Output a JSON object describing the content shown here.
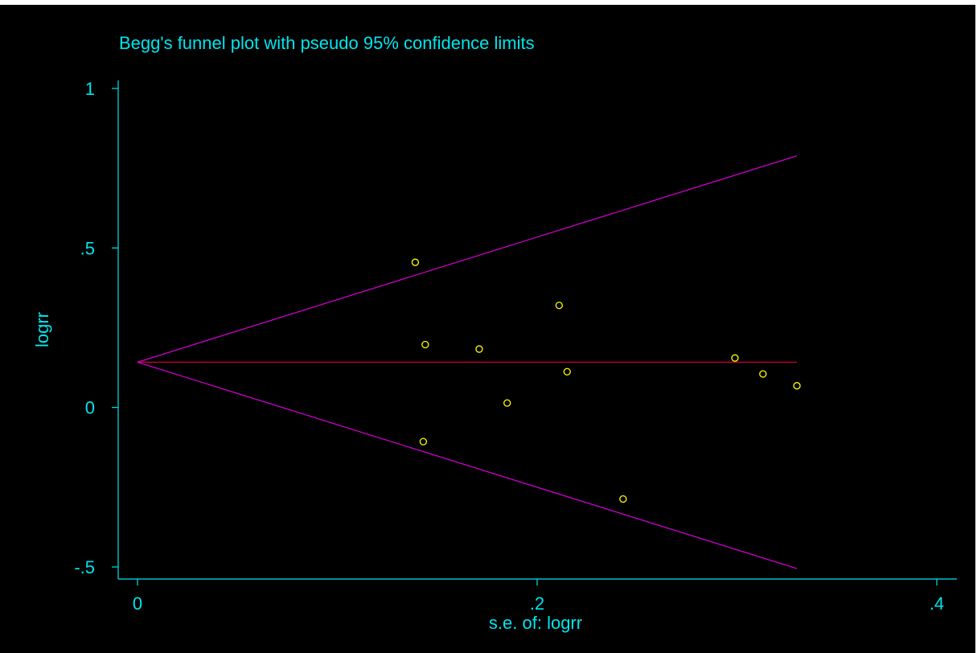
{
  "chart_data": {
    "type": "scatter",
    "title": "Begg's funnel plot with pseudo 95% confidence limits",
    "xlabel": "s.e. of: logrr",
    "ylabel": "logrr",
    "xlim": [
      0,
      0.4
    ],
    "ylim": [
      -0.5,
      1
    ],
    "x_ticks": [
      {
        "value": 0,
        "label": "0"
      },
      {
        "value": 0.2,
        "label": ".2"
      },
      {
        "value": 0.4,
        "label": ".4"
      }
    ],
    "y_ticks": [
      {
        "value": -0.5,
        "label": "-.5"
      },
      {
        "value": 0,
        "label": "0"
      },
      {
        "value": 0.5,
        "label": ".5"
      },
      {
        "value": 1,
        "label": "1"
      }
    ],
    "grid": false,
    "pooled_estimate": 0.142,
    "funnel_max_se": 0.33,
    "funnel_limits": {
      "upper": [
        [
          0,
          0.142
        ],
        [
          0.33,
          0.789
        ]
      ],
      "lower": [
        [
          0,
          0.142
        ],
        [
          0.33,
          -0.505
        ]
      ]
    },
    "points": [
      {
        "x": 0.139,
        "y": 0.455
      },
      {
        "x": 0.144,
        "y": 0.197
      },
      {
        "x": 0.143,
        "y": -0.107
      },
      {
        "x": 0.171,
        "y": 0.183
      },
      {
        "x": 0.185,
        "y": 0.014
      },
      {
        "x": 0.211,
        "y": 0.32
      },
      {
        "x": 0.215,
        "y": 0.112
      },
      {
        "x": 0.243,
        "y": -0.287
      },
      {
        "x": 0.299,
        "y": 0.155
      },
      {
        "x": 0.313,
        "y": 0.105
      },
      {
        "x": 0.33,
        "y": 0.068
      }
    ],
    "colors": {
      "background": "#000000",
      "axes": "#00e5ee",
      "text": "#00e5ee",
      "points": "#ffff00",
      "pooled_line": "#cc0033",
      "limit_lines": "#cc00cc"
    }
  }
}
